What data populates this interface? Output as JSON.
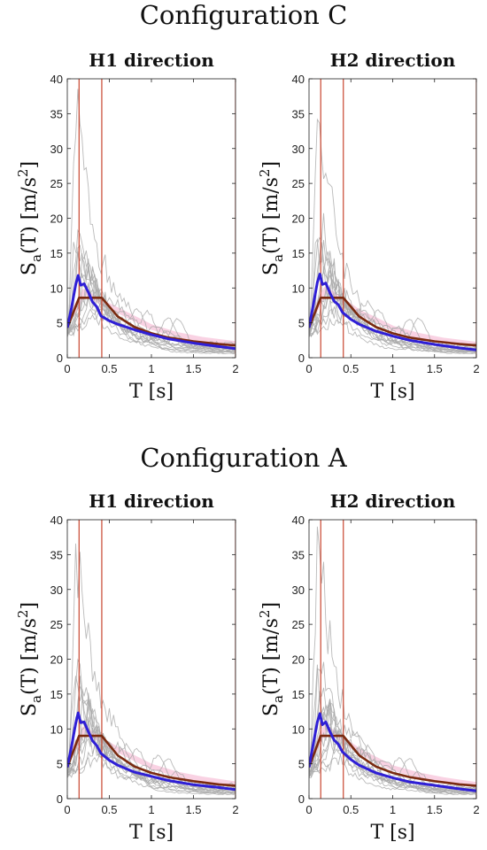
{
  "figure": {
    "configurations": [
      {
        "title": "Configuration C"
      },
      {
        "title": "Configuration A"
      }
    ]
  },
  "colors": {
    "records": "#a9a9a9",
    "mean": "#2f1fd6",
    "target": "#7a2a10",
    "pink": "#f4a6c8",
    "period_lines": "#c8452f",
    "axes": "#222222"
  },
  "chart_data": [
    {
      "type": "line",
      "configuration": "Configuration C",
      "title": "H1 direction",
      "xlabel": "T [s]",
      "ylabel": "S_a(T) [m/s^2]",
      "xlim": [
        0,
        2
      ],
      "ylim": [
        0,
        40
      ],
      "xticks": [
        0,
        0.5,
        1,
        1.5,
        2
      ],
      "yticks": [
        0,
        5,
        10,
        15,
        20,
        25,
        30,
        35,
        40
      ],
      "grid": false,
      "vertical_lines": [
        0.14,
        0.41,
        2.0
      ],
      "series": [
        {
          "role": "mean",
          "x": [
            0,
            0.05,
            0.1,
            0.13,
            0.16,
            0.2,
            0.25,
            0.3,
            0.35,
            0.4,
            0.5,
            0.6,
            0.8,
            1.0,
            1.2,
            1.5,
            1.8,
            2.0
          ],
          "y": [
            4.3,
            7.2,
            10.5,
            11.8,
            10.4,
            10.6,
            9.4,
            8.0,
            7.3,
            6.0,
            5.3,
            4.8,
            4.0,
            3.3,
            2.7,
            2.1,
            1.6,
            1.3
          ]
        },
        {
          "role": "target",
          "x": [
            0,
            0.14,
            0.41,
            0.6,
            0.8,
            1.0,
            1.2,
            1.5,
            1.8,
            2.0
          ],
          "y": [
            4.3,
            8.6,
            8.6,
            5.9,
            4.4,
            3.5,
            2.9,
            2.35,
            1.96,
            1.76
          ]
        },
        {
          "role": "pink",
          "x": [
            0.05,
            0.2,
            0.4,
            0.6,
            0.8,
            1.0,
            1.3,
            1.6,
            2.0
          ],
          "y": [
            6.0,
            9.5,
            8.0,
            6.8,
            5.6,
            4.4,
            3.3,
            2.6,
            2.0
          ]
        },
        {
          "role": "records",
          "peaks": [
            36.5,
            19.0,
            16.5,
            17.2,
            14.0,
            13.0,
            12.0,
            11.0,
            10.0,
            9.0,
            8.5,
            16.0,
            12.5,
            7.5
          ],
          "peak_periods": [
            0.1,
            0.12,
            0.15,
            0.08,
            0.2,
            0.25,
            0.18,
            0.3,
            0.35,
            0.22,
            0.45,
            0.14,
            0.28,
            0.5
          ],
          "tails": [
            1.0,
            0.7,
            1.4,
            0.9,
            1.6,
            1.2,
            0.8,
            2.0,
            1.1,
            0.6,
            1.8,
            1.3,
            0.9,
            1.5
          ]
        }
      ]
    },
    {
      "type": "line",
      "configuration": "Configuration C",
      "title": "H2 direction",
      "xlabel": "T [s]",
      "ylabel": "S_a(T) [m/s^2]",
      "xlim": [
        0,
        2
      ],
      "ylim": [
        0,
        40
      ],
      "xticks": [
        0,
        0.5,
        1,
        1.5,
        2
      ],
      "yticks": [
        0,
        5,
        10,
        15,
        20,
        25,
        30,
        35,
        40
      ],
      "grid": false,
      "vertical_lines": [
        0.14,
        0.41,
        2.0
      ],
      "series": [
        {
          "role": "mean",
          "x": [
            0,
            0.05,
            0.1,
            0.13,
            0.16,
            0.2,
            0.25,
            0.3,
            0.35,
            0.4,
            0.5,
            0.6,
            0.8,
            1.0,
            1.2,
            1.5,
            1.8,
            2.0
          ],
          "y": [
            4.3,
            7.5,
            10.8,
            12.0,
            10.5,
            10.7,
            9.3,
            8.1,
            7.6,
            6.5,
            5.5,
            4.8,
            3.8,
            3.1,
            2.5,
            1.9,
            1.4,
            1.1
          ]
        },
        {
          "role": "target",
          "x": [
            0,
            0.14,
            0.41,
            0.6,
            0.8,
            1.0,
            1.2,
            1.5,
            1.8,
            2.0
          ],
          "y": [
            4.3,
            8.6,
            8.6,
            5.9,
            4.4,
            3.5,
            2.9,
            2.35,
            1.96,
            1.76
          ]
        },
        {
          "role": "pink",
          "x": [
            0.05,
            0.2,
            0.4,
            0.6,
            0.8,
            1.0,
            1.3,
            1.6,
            2.0
          ],
          "y": [
            6.2,
            9.8,
            8.2,
            6.5,
            5.4,
            4.2,
            3.2,
            2.5,
            1.9
          ]
        },
        {
          "role": "records",
          "peaks": [
            36.5,
            21.0,
            16.5,
            18.0,
            14.5,
            12.5,
            11.5,
            10.5,
            9.5,
            8.5,
            15.0,
            13.0,
            9.0,
            7.0
          ],
          "peak_periods": [
            0.1,
            0.12,
            0.15,
            0.08,
            0.2,
            0.25,
            0.18,
            0.3,
            0.35,
            0.22,
            0.14,
            0.28,
            0.45,
            0.5
          ],
          "tails": [
            0.9,
            0.7,
            1.3,
            0.8,
            1.5,
            1.1,
            0.8,
            1.8,
            1.0,
            0.6,
            1.6,
            1.2,
            0.9,
            1.4
          ]
        }
      ]
    },
    {
      "type": "line",
      "configuration": "Configuration A",
      "title": "H1 direction",
      "xlabel": "T [s]",
      "ylabel": "S_a(T) [m/s^2]",
      "xlim": [
        0,
        2
      ],
      "ylim": [
        0,
        40
      ],
      "xticks": [
        0,
        0.5,
        1,
        1.5,
        2
      ],
      "yticks": [
        0,
        5,
        10,
        15,
        20,
        25,
        30,
        35,
        40
      ],
      "grid": false,
      "vertical_lines": [
        0.14,
        0.41,
        2.0
      ],
      "series": [
        {
          "role": "mean",
          "x": [
            0,
            0.05,
            0.1,
            0.13,
            0.16,
            0.2,
            0.25,
            0.3,
            0.35,
            0.4,
            0.5,
            0.6,
            0.8,
            1.0,
            1.2,
            1.5,
            1.8,
            2.0
          ],
          "y": [
            4.5,
            7.5,
            10.8,
            12.3,
            10.9,
            11.0,
            9.6,
            8.3,
            7.6,
            6.5,
            5.5,
            4.8,
            3.8,
            3.2,
            2.6,
            2.0,
            1.6,
            1.3
          ]
        },
        {
          "role": "target",
          "x": [
            0,
            0.14,
            0.41,
            0.6,
            0.8,
            1.0,
            1.2,
            1.5,
            1.8,
            2.0
          ],
          "y": [
            4.5,
            9.0,
            9.0,
            6.2,
            4.6,
            3.7,
            3.1,
            2.5,
            2.05,
            1.85
          ]
        },
        {
          "role": "pink",
          "x": [
            0.05,
            0.2,
            0.4,
            0.6,
            0.8,
            1.0,
            1.3,
            1.6,
            2.0
          ],
          "y": [
            6.3,
            10.0,
            8.4,
            7.0,
            5.8,
            4.6,
            3.5,
            2.8,
            2.1
          ]
        },
        {
          "role": "records",
          "peaks": [
            36.5,
            19.5,
            17.0,
            17.5,
            14.5,
            13.5,
            12.0,
            11.5,
            10.0,
            9.5,
            16.5,
            12.5,
            8.5,
            7.5
          ],
          "peak_periods": [
            0.1,
            0.12,
            0.15,
            0.08,
            0.2,
            0.25,
            0.18,
            0.3,
            0.35,
            0.22,
            0.14,
            0.28,
            0.45,
            0.5
          ],
          "tails": [
            1.0,
            0.7,
            1.4,
            0.9,
            1.6,
            1.2,
            0.8,
            2.0,
            1.1,
            0.6,
            1.8,
            1.3,
            0.9,
            1.5
          ]
        }
      ]
    },
    {
      "type": "line",
      "configuration": "Configuration A",
      "title": "H2 direction",
      "xlabel": "T [s]",
      "ylabel": "S_a(T) [m/s^2]",
      "xlim": [
        0,
        2
      ],
      "ylim": [
        0,
        40
      ],
      "xticks": [
        0,
        0.5,
        1,
        1.5,
        2
      ],
      "yticks": [
        0,
        5,
        10,
        15,
        20,
        25,
        30,
        35,
        40
      ],
      "grid": false,
      "vertical_lines": [
        0.14,
        0.41,
        2.0
      ],
      "series": [
        {
          "role": "mean",
          "x": [
            0,
            0.05,
            0.1,
            0.13,
            0.16,
            0.2,
            0.25,
            0.3,
            0.35,
            0.4,
            0.5,
            0.6,
            0.8,
            1.0,
            1.2,
            1.5,
            1.8,
            2.0
          ],
          "y": [
            4.5,
            7.8,
            11.0,
            12.2,
            10.6,
            11.0,
            9.6,
            8.4,
            7.8,
            6.7,
            5.6,
            4.8,
            3.7,
            3.0,
            2.4,
            1.9,
            1.4,
            1.1
          ]
        },
        {
          "role": "target",
          "x": [
            0,
            0.14,
            0.41,
            0.6,
            0.8,
            1.0,
            1.2,
            1.5,
            1.8,
            2.0
          ],
          "y": [
            4.5,
            9.0,
            9.0,
            6.2,
            4.6,
            3.7,
            3.1,
            2.5,
            2.05,
            1.85
          ]
        },
        {
          "role": "pink",
          "x": [
            0.05,
            0.2,
            0.4,
            0.6,
            0.8,
            1.0,
            1.3,
            1.6,
            2.0
          ],
          "y": [
            6.5,
            10.2,
            8.5,
            6.8,
            5.6,
            4.4,
            3.4,
            2.7,
            2.0
          ]
        },
        {
          "role": "records",
          "peaks": [
            36.5,
            21.0,
            16.5,
            18.0,
            14.5,
            12.5,
            11.5,
            10.5,
            9.5,
            8.5,
            15.0,
            13.0,
            9.0,
            7.0
          ],
          "peak_periods": [
            0.1,
            0.12,
            0.15,
            0.08,
            0.2,
            0.25,
            0.18,
            0.3,
            0.35,
            0.22,
            0.14,
            0.28,
            0.45,
            0.5
          ],
          "tails": [
            0.9,
            0.7,
            1.3,
            0.8,
            1.5,
            1.1,
            0.8,
            1.8,
            1.0,
            0.6,
            1.6,
            1.2,
            0.9,
            1.4
          ]
        }
      ]
    }
  ]
}
